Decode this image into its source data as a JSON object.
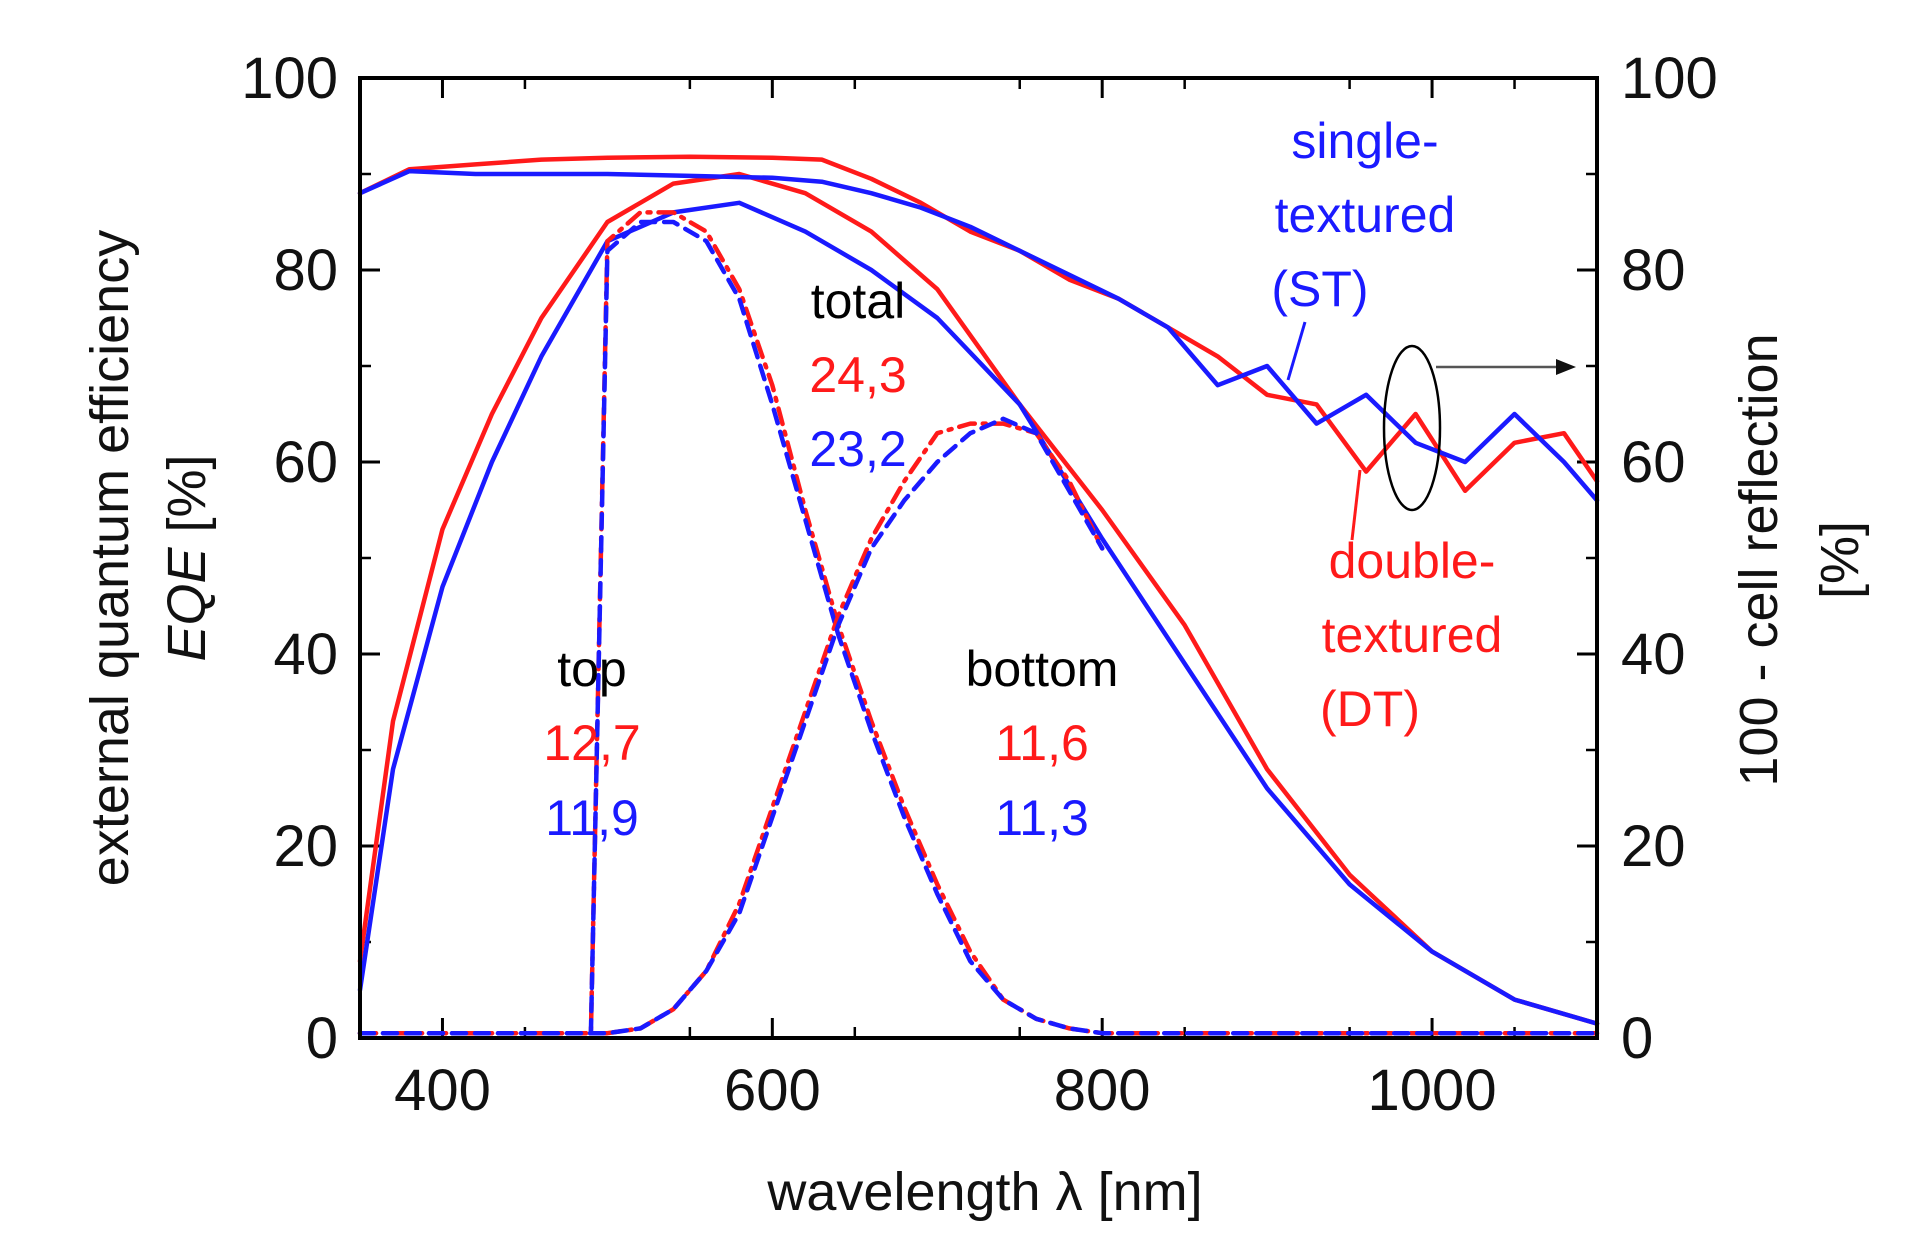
{
  "chart_data": {
    "type": "line",
    "title": "",
    "xlabel": "wavelength λ [nm]",
    "ylabel_left_line1": "external quantum efficiency",
    "ylabel_left_line2_italic": "EQE",
    "ylabel_left_line2_unit": " [%]",
    "ylabel_right_line1": "100 - cell reflection",
    "ylabel_right_line2": "[%]",
    "xlim": [
      350,
      1100
    ],
    "ylim": [
      0,
      100
    ],
    "y2lim": [
      0,
      100
    ],
    "x_ticks": [
      400,
      600,
      800,
      1000
    ],
    "y_ticks": [
      0,
      20,
      40,
      60,
      80,
      100
    ],
    "y2_ticks": [
      0,
      20,
      40,
      60,
      80,
      100
    ],
    "colors": {
      "double_textured": "#ff1a1a",
      "single_textured": "#1a1aff",
      "axis": "#000000"
    },
    "series": [
      {
        "name": "total EQE double-textured",
        "style": "solid",
        "color": "double_textured",
        "axis": "left",
        "x": [
          350,
          370,
          400,
          430,
          460,
          500,
          540,
          580,
          620,
          660,
          700,
          750,
          800,
          850,
          900,
          950,
          1000,
          1050,
          1100
        ],
        "y": [
          8,
          33,
          53,
          65,
          75,
          85,
          89,
          90,
          88,
          84,
          78,
          66,
          55,
          43,
          28,
          17,
          9,
          4,
          1.5
        ]
      },
      {
        "name": "total EQE single-textured",
        "style": "solid",
        "color": "single_textured",
        "axis": "left",
        "x": [
          350,
          370,
          400,
          430,
          460,
          500,
          540,
          580,
          620,
          660,
          700,
          750,
          800,
          850,
          900,
          950,
          1000,
          1050,
          1100
        ],
        "y": [
          5,
          28,
          47,
          60,
          71,
          83,
          86,
          87,
          84,
          80,
          75,
          66,
          52,
          39,
          26,
          16,
          9,
          4,
          1.5
        ]
      },
      {
        "name": "top cell double-textured",
        "style": "dashdot",
        "color": "double_textured",
        "axis": "left",
        "x": [
          350,
          450,
          490,
          500,
          520,
          540,
          560,
          580,
          600,
          620,
          640,
          660,
          680,
          700,
          720,
          740,
          760,
          780,
          800,
          850,
          1100
        ],
        "y": [
          0.5,
          0.5,
          0.5,
          83,
          86,
          86,
          84,
          78,
          68,
          55,
          43,
          33,
          24,
          16,
          9,
          4,
          2,
          1,
          0.5,
          0.5,
          0.5
        ],
        "x_note": "rising edge follows total EQE below 500 nm"
      },
      {
        "name": "top cell single-textured",
        "style": "dashed",
        "color": "single_textured",
        "axis": "left",
        "x": [
          350,
          490,
          500,
          520,
          540,
          560,
          580,
          600,
          620,
          640,
          660,
          680,
          700,
          720,
          740,
          760,
          780,
          800,
          850,
          1100
        ],
        "y": [
          0.5,
          0.5,
          82,
          85,
          85,
          83,
          77,
          66,
          54,
          42,
          32,
          23,
          15,
          8,
          4,
          2,
          1,
          0.5,
          0.5,
          0.5
        ]
      },
      {
        "name": "bottom cell double-textured",
        "style": "dashdot",
        "color": "double_textured",
        "axis": "left",
        "x": [
          350,
          500,
          520,
          540,
          560,
          580,
          600,
          620,
          640,
          660,
          680,
          700,
          720,
          740,
          760,
          780,
          800
        ],
        "y": [
          0.5,
          0.5,
          1,
          3,
          7,
          14,
          24,
          34,
          44,
          52,
          58,
          63,
          64,
          64,
          63,
          58,
          51
        ]
      },
      {
        "name": "bottom cell single-textured",
        "style": "dashed",
        "color": "single_textured",
        "axis": "left",
        "x": [
          350,
          500,
          520,
          540,
          560,
          580,
          600,
          620,
          640,
          660,
          680,
          700,
          720,
          740,
          760,
          780,
          800
        ],
        "y": [
          0.5,
          0.5,
          1,
          3,
          7,
          13,
          23,
          33,
          43,
          51,
          56,
          60,
          63,
          64.5,
          63,
          57,
          51
        ]
      },
      {
        "name": "100 - cell reflection double-textured",
        "style": "solid",
        "color": "double_textured",
        "axis": "right",
        "x": [
          350,
          380,
          420,
          460,
          500,
          550,
          600,
          630,
          660,
          690,
          720,
          750,
          780,
          810,
          840,
          870,
          900,
          930,
          960,
          990,
          1020,
          1050,
          1080,
          1100
        ],
        "y": [
          88,
          90.5,
          91,
          91.5,
          91.7,
          91.8,
          91.7,
          91.5,
          89.5,
          87,
          84,
          82,
          79,
          77,
          74,
          71,
          67,
          66,
          59,
          65,
          57,
          62,
          63,
          58
        ]
      },
      {
        "name": "100 - cell reflection single-textured",
        "style": "solid",
        "color": "single_textured",
        "axis": "right",
        "x": [
          350,
          380,
          420,
          460,
          500,
          550,
          600,
          630,
          660,
          690,
          720,
          750,
          780,
          810,
          840,
          870,
          900,
          930,
          960,
          990,
          1020,
          1050,
          1080,
          1100
        ],
        "y": [
          88,
          90.3,
          90,
          90,
          90,
          89.8,
          89.6,
          89.2,
          88,
          86.5,
          84.5,
          82,
          79.5,
          77,
          74,
          68,
          70,
          64,
          67,
          62,
          60,
          65,
          60,
          56
        ]
      }
    ],
    "annotations": {
      "total_label": "total",
      "total_dt": "24,3",
      "total_st": "23,2",
      "top_label": "top",
      "top_dt": "12,7",
      "top_st": "11,9",
      "bottom_label": "bottom",
      "bottom_dt": "11,6",
      "bottom_st": "11,3",
      "st_line1": "single-",
      "st_line2": "textured",
      "st_line3": "(ST)",
      "dt_line1": "double-",
      "dt_line2": "textured",
      "dt_line3": "(DT)"
    }
  }
}
